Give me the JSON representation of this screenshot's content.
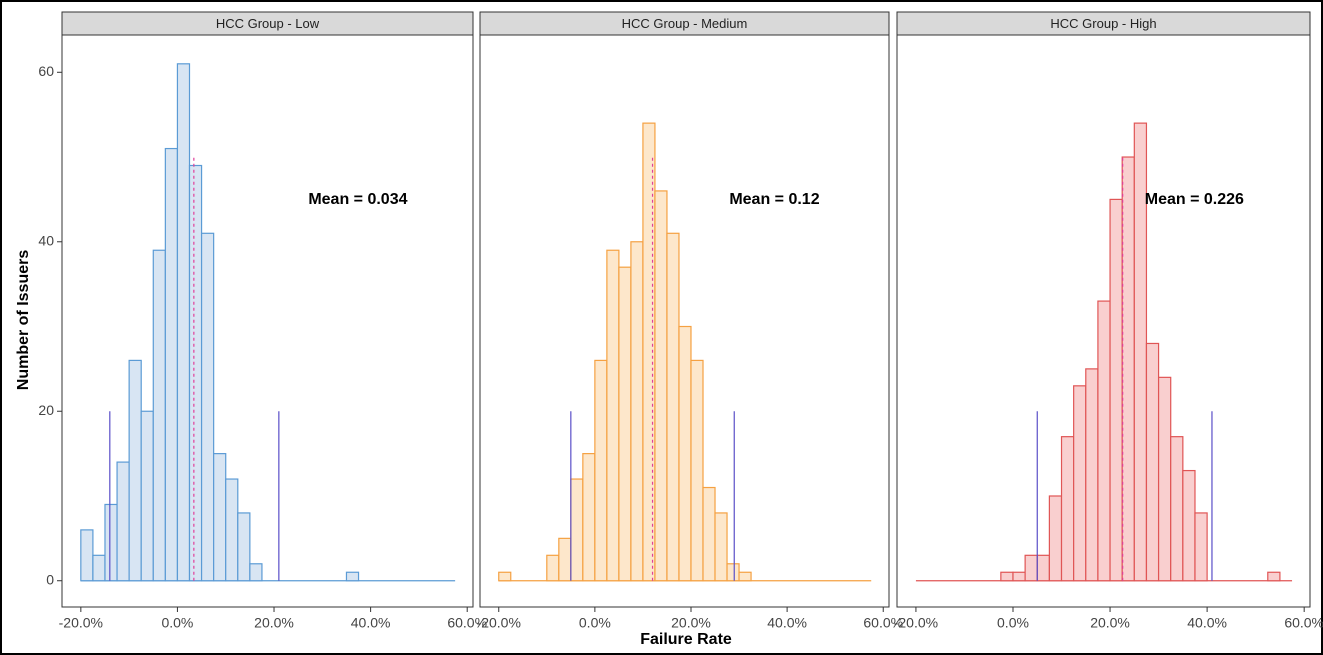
{
  "axis_labels": {
    "x": "Failure Rate",
    "y": "Number of Issuers"
  },
  "chart_data": [
    {
      "type": "histogram",
      "title": "HCC Group - Low",
      "fill": "#d8e5f3",
      "color": "#5b9bd5",
      "bins": [
        -20,
        -17.5,
        -15,
        -12.5,
        -10,
        -7.5,
        -5,
        -2.5,
        0,
        2.5,
        5,
        7.5,
        10,
        12.5,
        15,
        17.5,
        20,
        22.5,
        25,
        27.5,
        30,
        32.5,
        35,
        37.5,
        40,
        42.5,
        45,
        47.5,
        50,
        52.5,
        55,
        57.5
      ],
      "values": [
        6,
        3,
        9,
        14,
        26,
        20,
        39,
        51,
        61,
        49,
        41,
        15,
        12,
        8,
        2,
        0,
        0,
        0,
        0,
        0,
        0,
        0,
        1,
        0,
        0,
        0,
        0,
        0,
        0,
        0,
        0
      ],
      "xlim": [
        -23.9,
        61.2
      ],
      "ylim": [
        -3.1,
        64.4
      ],
      "xticks": [
        {
          "value": -20,
          "label": "-20.0%"
        },
        {
          "value": 0,
          "label": "0.0%"
        },
        {
          "value": 20,
          "label": "20.0%"
        },
        {
          "value": 40,
          "label": "40.0%"
        },
        {
          "value": 60,
          "label": "60.0%"
        }
      ],
      "yticks": [
        0,
        20,
        40,
        60
      ],
      "bounds": [
        -14,
        21
      ],
      "bound_height": 20,
      "mean": 3.4,
      "mean_height": 50,
      "annotation": "Mean = 0.034"
    },
    {
      "type": "histogram",
      "title": "HCC Group - Medium",
      "fill": "#fde7cb",
      "color": "#f5a142",
      "bins": [
        -20,
        -17.5,
        -15,
        -12.5,
        -10,
        -7.5,
        -5,
        -2.5,
        0,
        2.5,
        5,
        7.5,
        10,
        12.5,
        15,
        17.5,
        20,
        22.5,
        25,
        27.5,
        30,
        32.5,
        35,
        37.5,
        40,
        42.5,
        45,
        47.5,
        50,
        52.5,
        55,
        57.5
      ],
      "values": [
        1,
        0,
        0,
        0,
        3,
        5,
        12,
        15,
        26,
        39,
        37,
        40,
        54,
        46,
        41,
        30,
        26,
        11,
        8,
        2,
        1,
        0,
        0,
        0,
        0,
        0,
        0,
        0,
        0,
        0,
        0
      ],
      "xlim": [
        -23.9,
        61.2
      ],
      "ylim": [
        -3.1,
        64.4
      ],
      "xticks": [
        {
          "value": -20,
          "label": "-20.0%"
        },
        {
          "value": 0,
          "label": "0.0%"
        },
        {
          "value": 20,
          "label": "20.0%"
        },
        {
          "value": 40,
          "label": "40.0%"
        },
        {
          "value": 60,
          "label": "60.0%"
        }
      ],
      "bounds": [
        -5,
        29
      ],
      "bound_height": 20,
      "mean": 12,
      "mean_height": 50,
      "annotation": "Mean = 0.12"
    },
    {
      "type": "histogram",
      "title": "HCC Group - High",
      "fill": "#f9cfcf",
      "color": "#e05555",
      "bins": [
        -20,
        -17.5,
        -15,
        -12.5,
        -10,
        -7.5,
        -5,
        -2.5,
        0,
        2.5,
        5,
        7.5,
        10,
        12.5,
        15,
        17.5,
        20,
        22.5,
        25,
        27.5,
        30,
        32.5,
        35,
        37.5,
        40,
        42.5,
        45,
        47.5,
        50,
        52.5,
        55,
        57.5
      ],
      "values": [
        0,
        0,
        0,
        0,
        0,
        0,
        0,
        1,
        1,
        3,
        3,
        10,
        17,
        23,
        25,
        33,
        45,
        50,
        54,
        28,
        24,
        17,
        13,
        8,
        0,
        0,
        0,
        0,
        0,
        1,
        0
      ],
      "xlim": [
        -23.9,
        61.2
      ],
      "ylim": [
        -3.1,
        64.4
      ],
      "xticks": [
        {
          "value": -20,
          "label": "-20.0%"
        },
        {
          "value": 0,
          "label": "0.0%"
        },
        {
          "value": 20,
          "label": "20.0%"
        },
        {
          "value": 40,
          "label": "40.0%"
        },
        {
          "value": 60,
          "label": "60.0%"
        }
      ],
      "bounds": [
        5,
        41
      ],
      "bound_height": 20,
      "mean": 22.6,
      "mean_height": 50,
      "annotation": "Mean = 0.226"
    }
  ]
}
